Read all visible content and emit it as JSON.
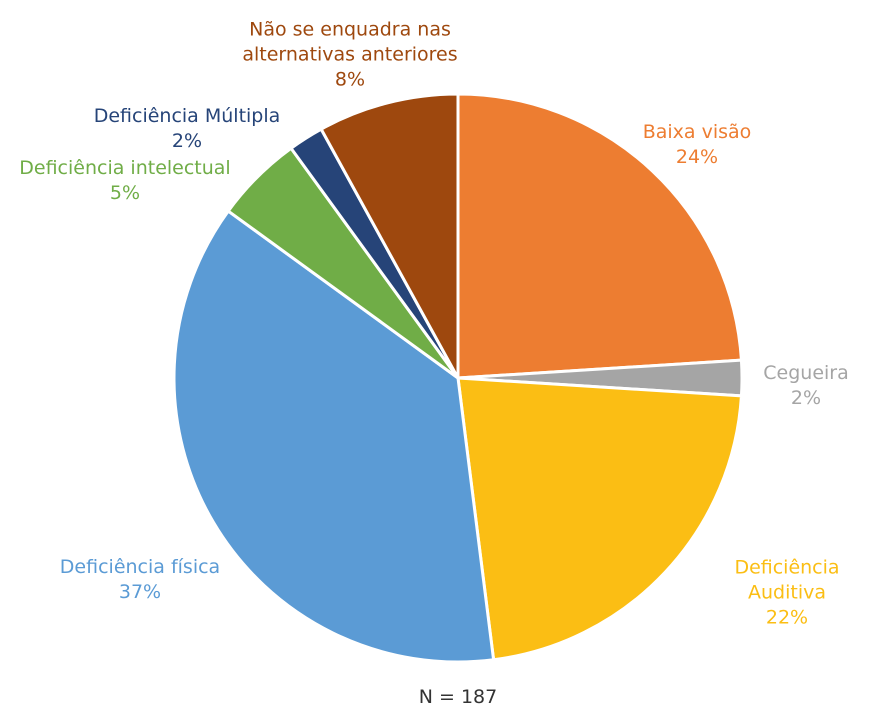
{
  "chart_data": {
    "type": "pie",
    "categories": [
      "Baixa visão",
      "Cegueira",
      "Deficiência Auditiva",
      "Deficiência física",
      "Deficiência intelectual",
      "Deficiência Múltipla",
      "Não se enquadra nas alternativas anteriores"
    ],
    "values": [
      24,
      2,
      22,
      37,
      5,
      2,
      8
    ],
    "value_labels": [
      "24%",
      "2%",
      "22%",
      "37%",
      "5%",
      "2%",
      "8%"
    ],
    "colors": [
      "#ED7D31",
      "#A5A5A5",
      "#FBBE14",
      "#5B9BD5",
      "#70AD47",
      "#264478",
      "#9E480E"
    ],
    "note": "N = 187"
  }
}
